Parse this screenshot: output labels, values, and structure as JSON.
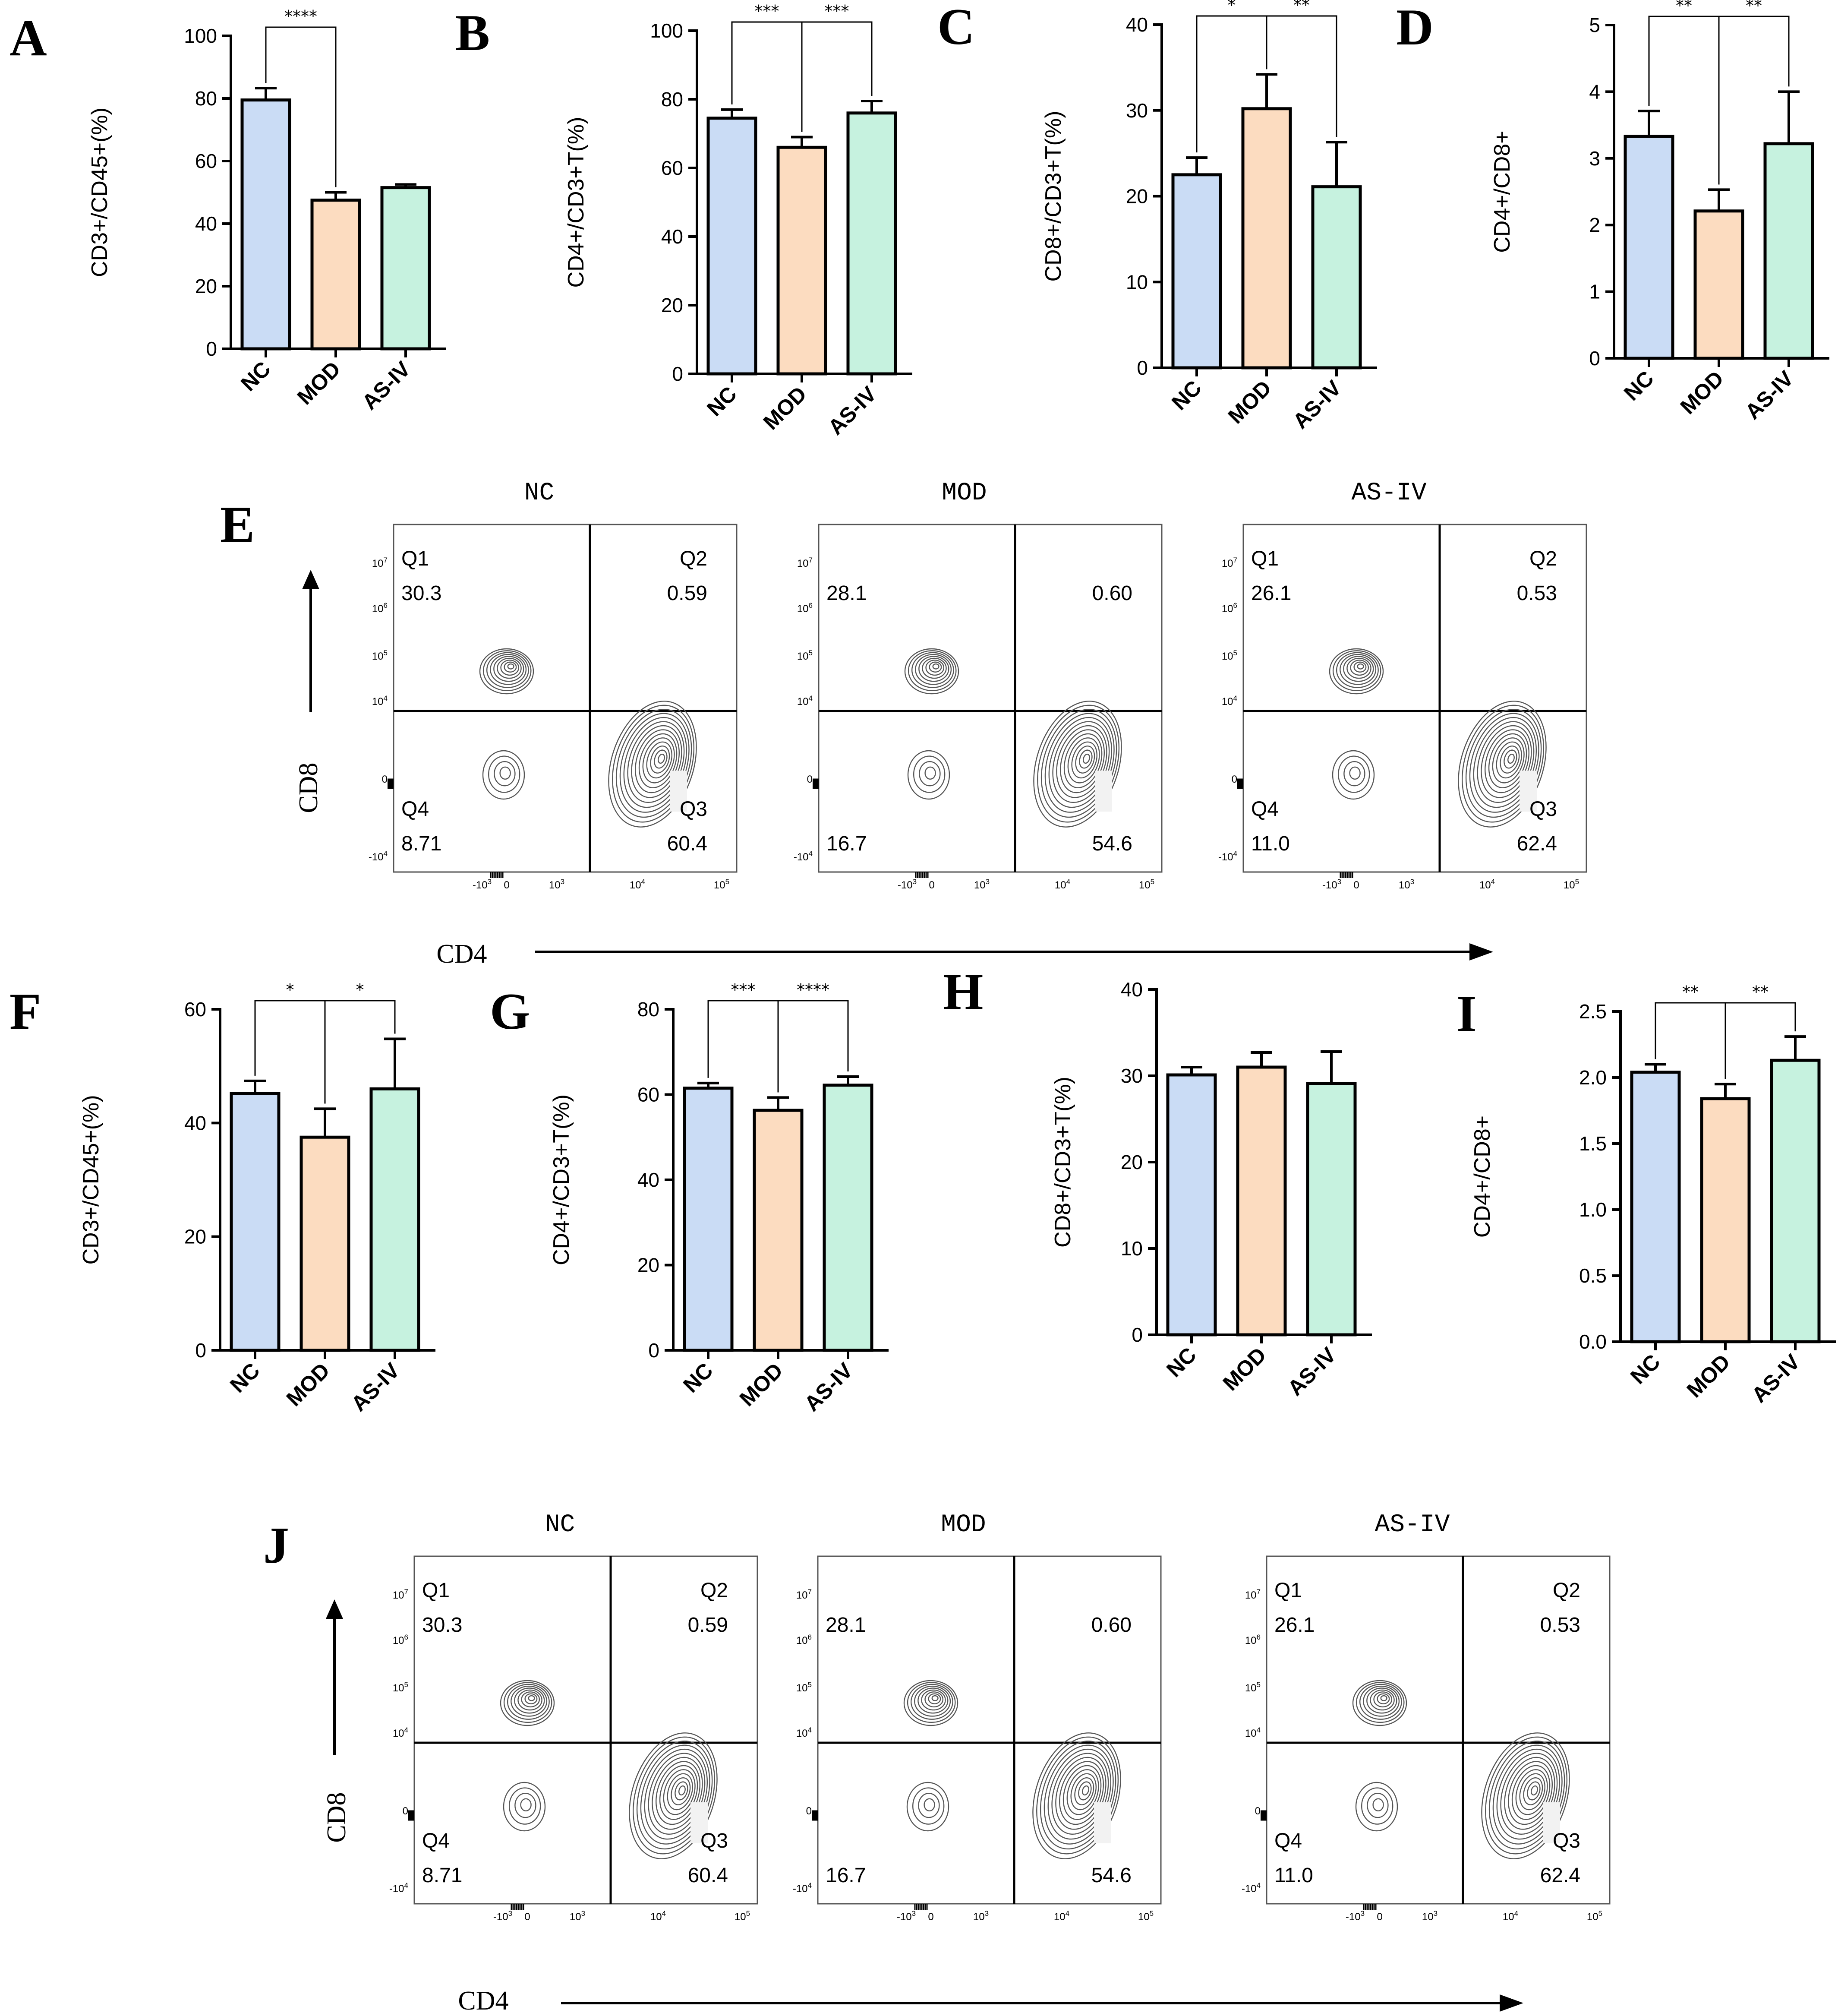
{
  "colors": {
    "NC": "#cadcf5",
    "MOD": "#fcdcc0",
    "AS-IV": "#c6f2df",
    "axis": "#000000",
    "contour": "#555555"
  },
  "icons": {
    "arrow_up": "arrow-up-icon",
    "arrow_right": "arrow-right-icon"
  },
  "chart_data": [
    {
      "panel": "A",
      "type": "bar",
      "categories": [
        "NC",
        "MOD",
        "AS-IV"
      ],
      "values": [
        79.5,
        47.5,
        51.5
      ],
      "errors": [
        3.8,
        2.5,
        1.0
      ],
      "ylabel": "CD3+/CD45+(%)",
      "ylim": [
        0,
        100
      ],
      "yticks": [
        "0",
        "20",
        "40",
        "60",
        "80",
        "100"
      ],
      "significance": [
        {
          "from": 0,
          "to": 1,
          "label": "****"
        }
      ]
    },
    {
      "panel": "B",
      "type": "bar",
      "categories": [
        "NC",
        "MOD",
        "AS-IV"
      ],
      "values": [
        74.5,
        66.0,
        76.0
      ],
      "errors": [
        2.5,
        3.0,
        3.5
      ],
      "ylabel": "CD4+/CD3+T(%)",
      "ylim": [
        0,
        100
      ],
      "yticks": [
        "0",
        "20",
        "40",
        "60",
        "80",
        "100"
      ],
      "significance": [
        {
          "from": 0,
          "to": 1,
          "label": "***"
        },
        {
          "from": 1,
          "to": 2,
          "label": "***"
        }
      ]
    },
    {
      "panel": "C",
      "type": "bar",
      "categories": [
        "NC",
        "MOD",
        "AS-IV"
      ],
      "values": [
        22.5,
        30.2,
        21.1
      ],
      "errors": [
        2.0,
        4.0,
        5.2
      ],
      "ylabel": "CD8+/CD3+T(%)",
      "ylim": [
        0,
        40
      ],
      "yticks": [
        "0",
        "10",
        "20",
        "30",
        "40"
      ],
      "significance": [
        {
          "from": 0,
          "to": 1,
          "label": "*"
        },
        {
          "from": 1,
          "to": 2,
          "label": "**"
        }
      ]
    },
    {
      "panel": "D",
      "type": "bar",
      "categories": [
        "NC",
        "MOD",
        "AS-IV"
      ],
      "values": [
        3.33,
        2.21,
        3.22
      ],
      "errors": [
        0.38,
        0.32,
        0.78
      ],
      "ylabel": "CD4+/CD8+",
      "ylim": [
        0,
        5
      ],
      "yticks": [
        "0",
        "1",
        "2",
        "3",
        "4",
        "5"
      ],
      "significance": [
        {
          "from": 0,
          "to": 1,
          "label": "**"
        },
        {
          "from": 1,
          "to": 2,
          "label": "**"
        }
      ]
    },
    {
      "panel": "F",
      "type": "bar",
      "categories": [
        "NC",
        "MOD",
        "AS-IV"
      ],
      "values": [
        45.2,
        37.5,
        46.0
      ],
      "errors": [
        2.2,
        5.0,
        8.8
      ],
      "ylabel": "CD3+/CD45+(%)",
      "ylim": [
        0,
        60
      ],
      "yticks": [
        "0",
        "20",
        "40",
        "60"
      ],
      "significance": [
        {
          "from": 0,
          "to": 1,
          "label": "*"
        },
        {
          "from": 1,
          "to": 2,
          "label": "*"
        }
      ]
    },
    {
      "panel": "G",
      "type": "bar",
      "categories": [
        "NC",
        "MOD",
        "AS-IV"
      ],
      "values": [
        61.5,
        56.3,
        62.2
      ],
      "errors": [
        1.2,
        3.0,
        2.0
      ],
      "ylabel": "CD4+/CD3+T(%)",
      "ylim": [
        0,
        80
      ],
      "yticks": [
        "0",
        "20",
        "40",
        "60",
        "80"
      ],
      "significance": [
        {
          "from": 0,
          "to": 1,
          "label": "***"
        },
        {
          "from": 1,
          "to": 2,
          "label": "****"
        }
      ]
    },
    {
      "panel": "H",
      "type": "bar",
      "categories": [
        "NC",
        "MOD",
        "AS-IV"
      ],
      "values": [
        30.1,
        31.0,
        29.1
      ],
      "errors": [
        0.9,
        1.7,
        3.7
      ],
      "ylabel": "CD8+/CD3+T(%)",
      "ylim": [
        0,
        40
      ],
      "yticks": [
        "0",
        "10",
        "20",
        "30",
        "40"
      ],
      "significance": []
    },
    {
      "panel": "I",
      "type": "bar",
      "categories": [
        "NC",
        "MOD",
        "AS-IV"
      ],
      "values": [
        2.04,
        1.84,
        2.13
      ],
      "errors": [
        0.06,
        0.11,
        0.18
      ],
      "ylabel": "CD4+/CD8+",
      "ylim": [
        0,
        2.5
      ],
      "yticks": [
        "0.0",
        "0.5",
        "1.0",
        "1.5",
        "2.0",
        "2.5"
      ],
      "significance": [
        {
          "from": 0,
          "to": 1,
          "label": "**"
        },
        {
          "from": 1,
          "to": 2,
          "label": "**"
        }
      ]
    },
    {
      "panel": "E",
      "type": "flow-cytometry-contour",
      "xlabel": "CD4",
      "ylabel": "CD8",
      "y_ticks": [
        "10^7",
        "10^6",
        "10^5",
        "10^4",
        "0",
        "-10^4"
      ],
      "x_ticks": [
        "-10^3",
        "0",
        "10^3",
        "10^4",
        "10^5"
      ],
      "plots": [
        {
          "title": "NC",
          "q1_label": "Q1",
          "q1": "30.3",
          "q2_label": "Q2",
          "q2": "0.59",
          "q3_label": "Q3",
          "q3": "60.4",
          "q4_label": "Q4",
          "q4": "8.71"
        },
        {
          "title": "MOD",
          "q1_label": "",
          "q1": "28.1",
          "q2_label": "",
          "q2": "0.60",
          "q3_label": "",
          "q3": "54.6",
          "q4_label": "",
          "q4": "16.7"
        },
        {
          "title": "AS-IV",
          "q1_label": "Q1",
          "q1": "26.1",
          "q2_label": "Q2",
          "q2": "0.53",
          "q3_label": "Q3",
          "q3": "62.4",
          "q4_label": "Q4",
          "q4": "11.0"
        }
      ]
    },
    {
      "panel": "J",
      "type": "flow-cytometry-contour",
      "xlabel": "CD4",
      "ylabel": "CD8",
      "y_ticks": [
        "10^7",
        "10^6",
        "10^5",
        "10^4",
        "0",
        "-10^4"
      ],
      "x_ticks": [
        "-10^3",
        "0",
        "10^3",
        "10^4",
        "10^5"
      ],
      "plots": [
        {
          "title": "NC",
          "q1_label": "Q1",
          "q1": "30.3",
          "q2_label": "Q2",
          "q2": "0.59",
          "q3_label": "Q3",
          "q3": "60.4",
          "q4_label": "Q4",
          "q4": "8.71"
        },
        {
          "title": "MOD",
          "q1_label": "",
          "q1": "28.1",
          "q2_label": "",
          "q2": "0.60",
          "q3_label": "",
          "q3": "54.6",
          "q4_label": "",
          "q4": "16.7"
        },
        {
          "title": "AS-IV",
          "q1_label": "Q1",
          "q1": "26.1",
          "q2_label": "Q2",
          "q2": "0.53",
          "q3_label": "Q3",
          "q3": "62.4",
          "q4_label": "Q4",
          "q4": "11.0"
        }
      ]
    }
  ]
}
